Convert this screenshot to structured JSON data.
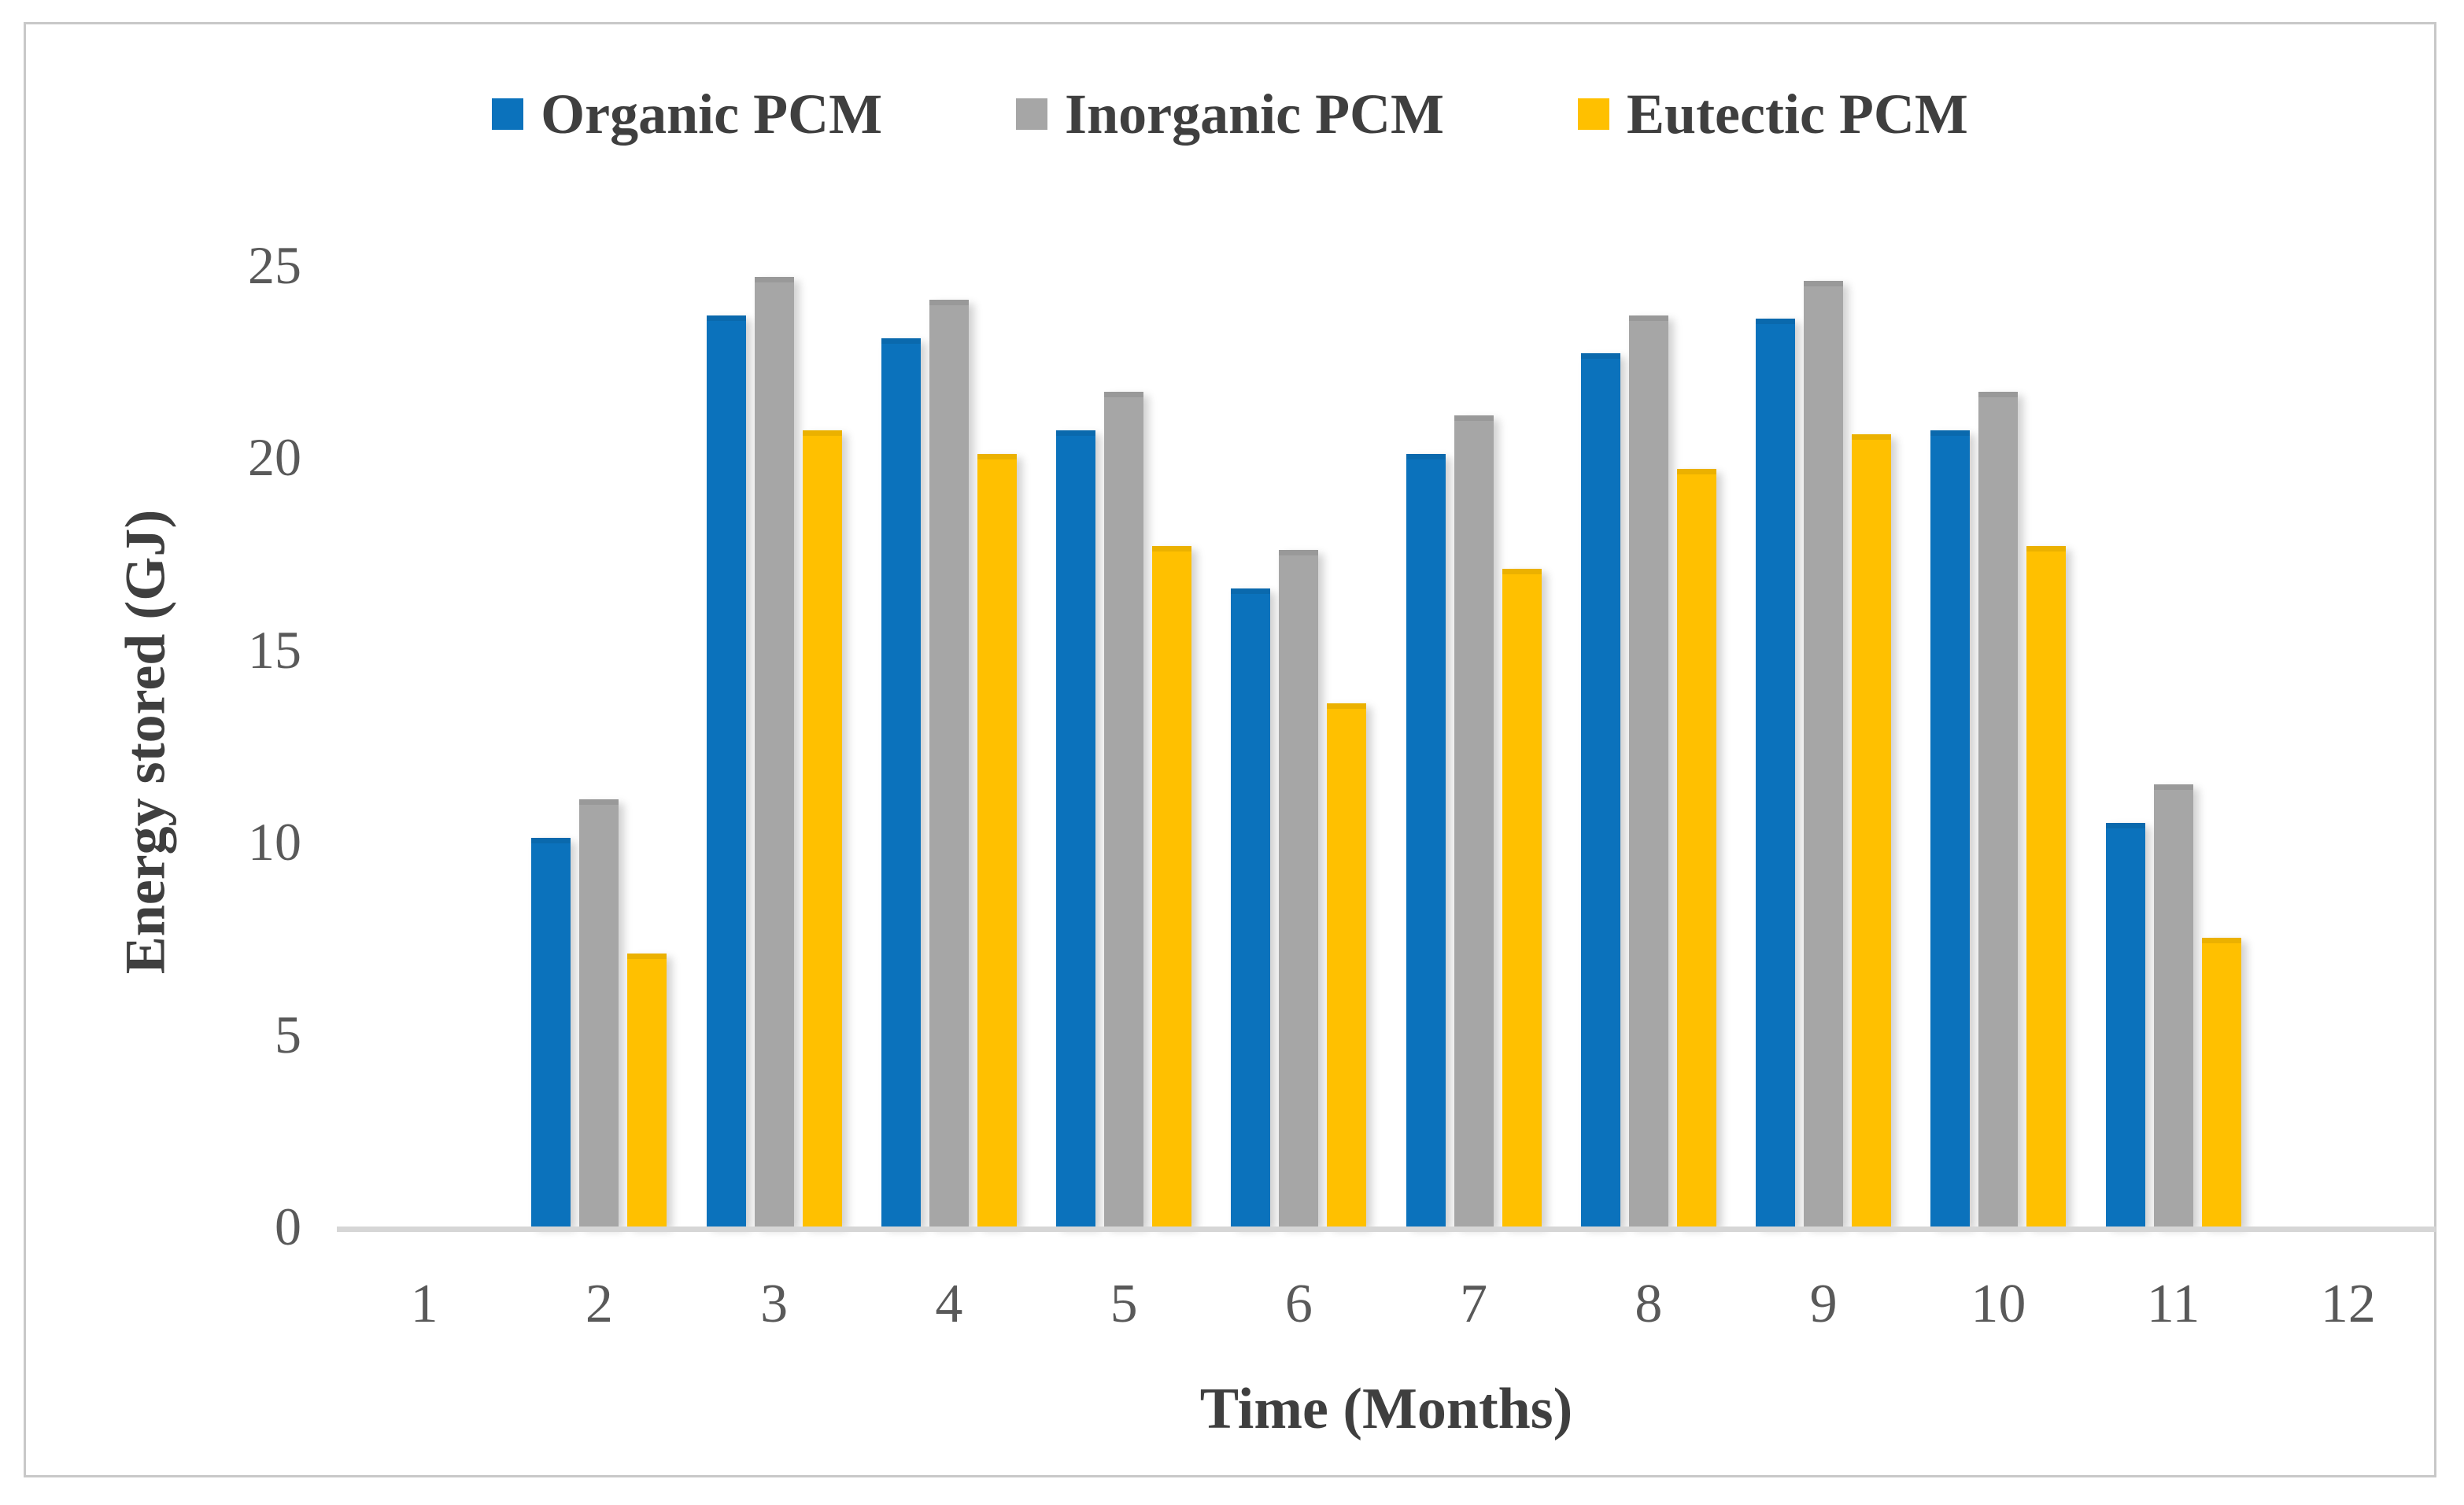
{
  "figure": {
    "background_color": "#ffffff",
    "border_color": "#c8c8c8"
  },
  "chart_data": {
    "type": "bar",
    "title": "",
    "xlabel": "Time (Months)",
    "ylabel": "Energy stored (GJ)",
    "categories": [
      "1",
      "2",
      "3",
      "4",
      "5",
      "6",
      "7",
      "8",
      "9",
      "10",
      "11",
      "12"
    ],
    "series": [
      {
        "name": "Organic PCM",
        "color": "#0b72bc",
        "values": [
          0,
          10.1,
          23.7,
          23.1,
          20.7,
          16.6,
          20.1,
          22.7,
          23.6,
          20.7,
          10.5,
          0
        ]
      },
      {
        "name": "Inorganic PCM",
        "color": "#a6a6a6",
        "values": [
          0,
          11.1,
          24.7,
          24.1,
          21.7,
          17.6,
          21.1,
          23.7,
          24.6,
          21.7,
          11.5,
          0
        ]
      },
      {
        "name": "Eutectic PCM",
        "color": "#ffc000",
        "values": [
          0,
          7.1,
          20.7,
          20.1,
          17.7,
          13.6,
          17.1,
          19.7,
          20.6,
          17.7,
          7.5,
          0
        ]
      }
    ],
    "ylim": [
      0,
      25
    ],
    "y_ticks": [
      0,
      5,
      10,
      15,
      20,
      25
    ],
    "grid": false,
    "legend_position": "top-center",
    "axis_text_color": "#595959",
    "title_text_color": "#3f3f3f"
  }
}
